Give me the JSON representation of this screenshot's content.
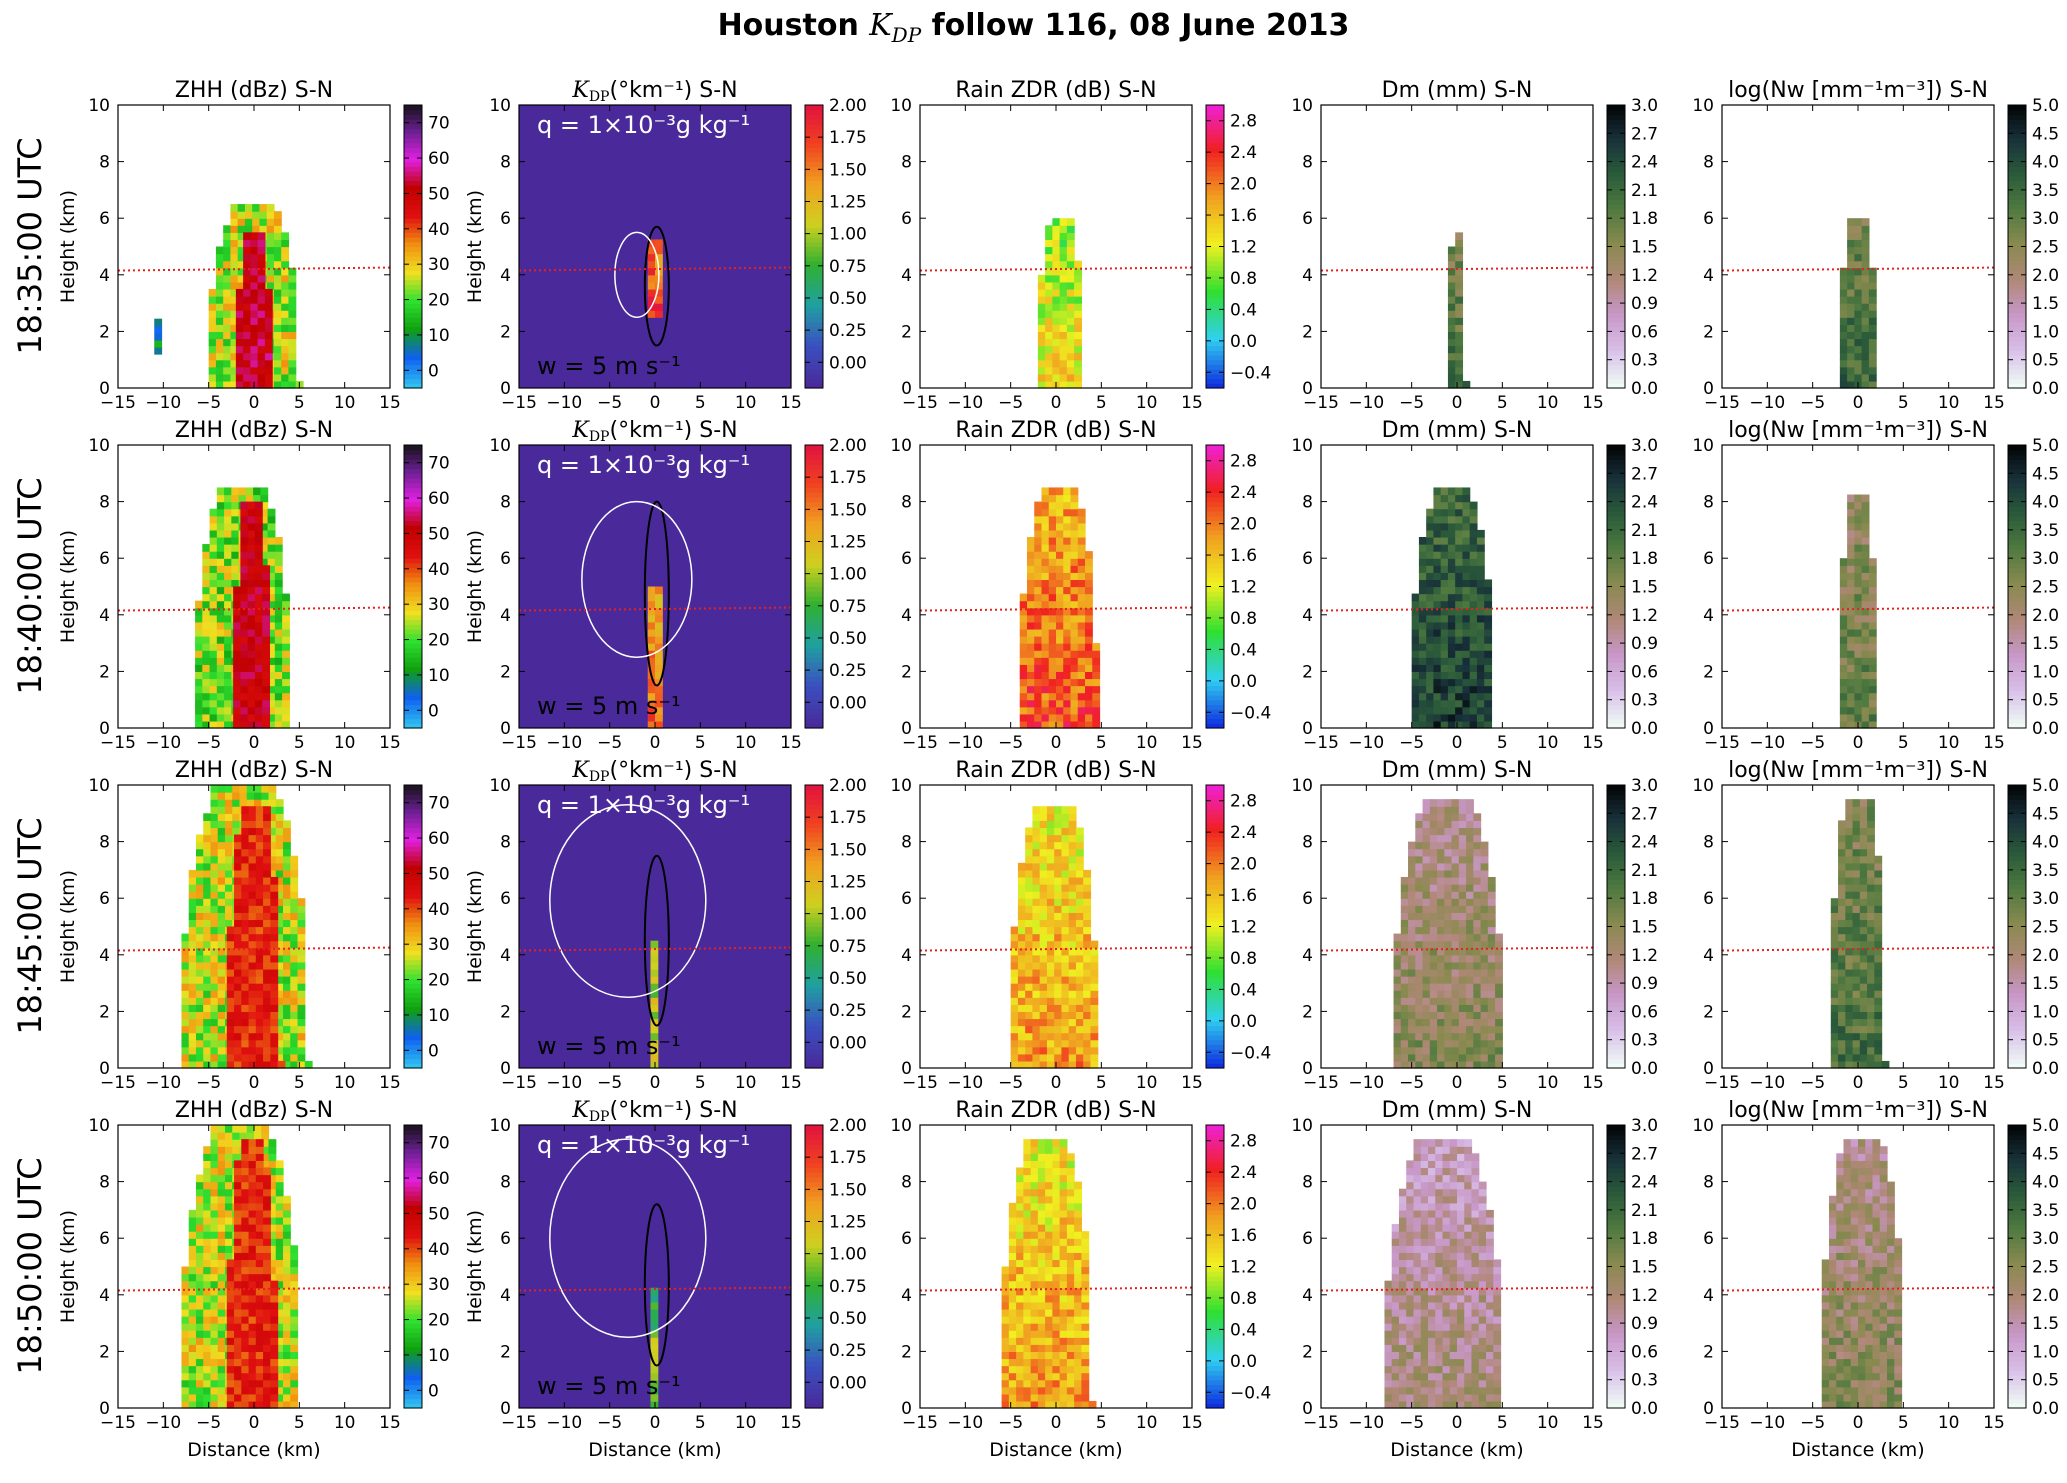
{
  "title": "Houston K_DP follow 116, 08 June 2013",
  "title_parts": {
    "pre": "Houston ",
    "math": "K",
    "math_sub": "DP",
    "post": " follow 116, 08 June 2013"
  },
  "row_labels": [
    "18:35:00 UTC",
    "18:40:00 UTC",
    "18:45:00 UTC",
    "18:50:00 UTC"
  ],
  "colors": {
    "melting_level_line": "#e8201d",
    "background_kdp": "#4a2a9a",
    "white_contour": "#ffffff",
    "black_contour": "#000000"
  },
  "chart_data": [
    {
      "type": "heatmap",
      "column": "ZHH",
      "title": "ZHH (dBz) S-N",
      "xlabel": "Distance (km)",
      "ylabel": "Height (km)",
      "xlim": [
        -15,
        15
      ],
      "ylim": [
        0,
        10
      ],
      "xticks": [
        -15,
        -10,
        -5,
        0,
        5,
        10,
        15
      ],
      "yticks": [
        0,
        2,
        4,
        6,
        8,
        10
      ],
      "colorbar": {
        "min": -5,
        "max": 75,
        "ticks": [
          0,
          10,
          20,
          30,
          40,
          50,
          60,
          70
        ],
        "colormap": [
          "#30c0f0",
          "#1060f0",
          "#10a010",
          "#30e030",
          "#f0e020",
          "#f09010",
          "#e01010",
          "#c00000",
          "#e020e0",
          "#6a2090",
          "#101010"
        ]
      },
      "cells": [
        {
          "kind": "core",
          "x": [
            -2,
            2
          ],
          "y": [
            0,
            5.5
          ],
          "snapshot": 0,
          "value": 52
        },
        {
          "kind": "shell",
          "x": [
            -5,
            5
          ],
          "y": [
            0,
            6.3
          ],
          "snapshot": 0,
          "value": 25
        },
        {
          "kind": "blob",
          "x": [
            -11,
            -10
          ],
          "y": [
            1.2,
            2.3
          ],
          "snapshot": 0,
          "value": 10
        },
        {
          "kind": "core",
          "x": [
            -2.3,
            1.8
          ],
          "y": [
            0,
            8
          ],
          "snapshot": 1,
          "value": 50
        },
        {
          "kind": "shell",
          "x": [
            -6.5,
            4
          ],
          "y": [
            0,
            8.5
          ],
          "snapshot": 1,
          "value": 22
        },
        {
          "kind": "core",
          "x": [
            -3,
            3
          ],
          "y": [
            0,
            9.2
          ],
          "snapshot": 2,
          "value": 42
        },
        {
          "kind": "shell",
          "x": [
            -8,
            6
          ],
          "y": [
            0,
            10
          ],
          "snapshot": 2,
          "value": 25
        },
        {
          "kind": "core",
          "x": [
            -3,
            2.5
          ],
          "y": [
            0,
            9.3
          ],
          "snapshot": 3,
          "value": 42
        },
        {
          "kind": "shell",
          "x": [
            -8,
            5
          ],
          "y": [
            0,
            10
          ],
          "snapshot": 3,
          "value": 25
        }
      ]
    },
    {
      "type": "heatmap",
      "column": "KDP",
      "title": "K_DP (°km⁻¹) S-N",
      "title_parts": {
        "math": "K",
        "sub": "DP",
        "rest": "(°km⁻¹) S-N"
      },
      "annotation_q": "q = 1×10⁻³g kg⁻¹",
      "annotation_w": "w = 5 m s⁻¹",
      "xlabel": "Distance (km)",
      "ylabel": "Height (km)",
      "xlim": [
        -15,
        15
      ],
      "ylim": [
        0,
        10
      ],
      "xticks": [
        -15,
        -10,
        -5,
        0,
        5,
        10,
        15
      ],
      "yticks": [
        0,
        2,
        4,
        6,
        8,
        10
      ],
      "colorbar": {
        "min": -0.2,
        "max": 2.0,
        "ticks": [
          0.0,
          0.25,
          0.5,
          0.75,
          1.0,
          1.25,
          1.5,
          1.75,
          2.0
        ],
        "ticklabels": [
          "0.00",
          "0.25",
          "0.50",
          "0.75",
          "1.00",
          "1.25",
          "1.50",
          "1.75",
          "2.00"
        ],
        "colormap": [
          "#4a2a9a",
          "#3a50c0",
          "#20a0a0",
          "#30b030",
          "#d0d020",
          "#f0a020",
          "#f04020",
          "#e01040"
        ]
      },
      "cells": [
        {
          "kind": "core",
          "x": [
            -0.8,
            0.8
          ],
          "y": [
            2.5,
            5.2
          ],
          "snapshot": 0,
          "value": 1.8
        },
        {
          "kind": "core",
          "x": [
            -0.8,
            0.8
          ],
          "y": [
            0,
            5
          ],
          "snapshot": 1,
          "value": 1.6
        },
        {
          "kind": "core",
          "x": [
            -0.5,
            0.7
          ],
          "y": [
            0,
            4.5
          ],
          "snapshot": 2,
          "value": 1.2
        },
        {
          "kind": "core",
          "x": [
            -0.5,
            0.7
          ],
          "y": [
            0,
            4.2
          ],
          "snapshot": 3,
          "value": 1.0
        }
      ]
    },
    {
      "type": "heatmap",
      "column": "ZDR",
      "title": "Rain ZDR (dB) S-N",
      "xlabel": "Distance (km)",
      "ylabel": "",
      "xlim": [
        -15,
        15
      ],
      "ylim": [
        0,
        10
      ],
      "xticks": [
        -15,
        -10,
        -5,
        0,
        5,
        10,
        15
      ],
      "yticks": [
        0,
        2,
        4,
        6,
        8,
        10
      ],
      "colorbar": {
        "min": -0.6,
        "max": 3.0,
        "ticks": [
          -0.4,
          0.0,
          0.4,
          0.8,
          1.2,
          1.6,
          2.0,
          2.4,
          2.8
        ],
        "ticklabels": [
          "−0.4",
          "0.0",
          "0.4",
          "0.8",
          "1.2",
          "1.6",
          "2.0",
          "2.4",
          "2.8"
        ],
        "colormap": [
          "#1030e0",
          "#30d0f0",
          "#30e030",
          "#f0f020",
          "#f0a020",
          "#f02020",
          "#f020e0"
        ]
      },
      "cells": [
        {
          "kind": "core",
          "x": [
            -2,
            3
          ],
          "y": [
            0,
            5.8
          ],
          "snapshot": 0,
          "value": 1.4
        },
        {
          "kind": "core",
          "x": [
            -4,
            4.5
          ],
          "y": [
            0,
            8.4
          ],
          "snapshot": 1,
          "value": 2.2
        },
        {
          "kind": "core",
          "x": [
            -5,
            4.5
          ],
          "y": [
            0,
            9.2
          ],
          "snapshot": 2,
          "value": 1.8
        },
        {
          "kind": "core",
          "x": [
            -6,
            4
          ],
          "y": [
            0,
            9.3
          ],
          "snapshot": 3,
          "value": 1.8
        }
      ]
    },
    {
      "type": "heatmap",
      "column": "Dm",
      "title": "Dm (mm) S-N",
      "xlabel": "Distance (km)",
      "ylabel": "",
      "xlim": [
        -15,
        15
      ],
      "ylim": [
        0,
        10
      ],
      "xticks": [
        -15,
        -10,
        -5,
        0,
        5,
        10,
        15
      ],
      "yticks": [
        0,
        2,
        4,
        6,
        8,
        10
      ],
      "colorbar": {
        "min": 0.0,
        "max": 3.0,
        "ticks": [
          0.0,
          0.3,
          0.6,
          0.9,
          1.2,
          1.5,
          1.8,
          2.1,
          2.4,
          2.7,
          3.0
        ],
        "ticklabels": [
          "0.0",
          "0.3",
          "0.6",
          "0.9",
          "1.2",
          "1.5",
          "1.8",
          "2.1",
          "2.4",
          "2.7",
          "3.0"
        ],
        "colormap": [
          "#f0fbf5",
          "#d8c0e8",
          "#c898c8",
          "#b08878",
          "#8a8a50",
          "#507a40",
          "#2a5a3a",
          "#18303a",
          "#000000"
        ]
      },
      "cells": [
        {
          "kind": "core",
          "x": [
            -1,
            1
          ],
          "y": [
            0,
            5.5
          ],
          "snapshot": 0,
          "value": 2.0
        },
        {
          "kind": "core",
          "x": [
            -5,
            4
          ],
          "y": [
            0,
            8.3
          ],
          "snapshot": 1,
          "value": 2.5
        },
        {
          "kind": "core",
          "x": [
            -7,
            5
          ],
          "y": [
            0,
            9.3
          ],
          "snapshot": 2,
          "value": 1.5
        },
        {
          "kind": "core",
          "x": [
            -8,
            5
          ],
          "y": [
            0,
            9.3
          ],
          "snapshot": 3,
          "value": 1.2
        }
      ]
    },
    {
      "type": "heatmap",
      "column": "Nw",
      "title": "log(Nw [mm⁻¹m⁻³]) S-N",
      "xlabel": "Distance (km)",
      "ylabel": "",
      "xlim": [
        -15,
        15
      ],
      "ylim": [
        0,
        10
      ],
      "xticks": [
        -15,
        -10,
        -5,
        0,
        5,
        10,
        15
      ],
      "yticks": [
        0,
        2,
        4,
        6,
        8,
        10
      ],
      "colorbar": {
        "min": 0.0,
        "max": 5.0,
        "ticks": [
          0.0,
          0.5,
          1.0,
          1.5,
          2.0,
          2.5,
          3.0,
          3.5,
          4.0,
          4.5,
          5.0
        ],
        "ticklabels": [
          "0.0",
          "0.5",
          "1.0",
          "1.5",
          "2.0",
          "2.5",
          "3.0",
          "3.5",
          "4.0",
          "4.5",
          "5.0"
        ],
        "colormap": [
          "#f0fbf5",
          "#d8c0e8",
          "#c898c8",
          "#b08878",
          "#8a8a50",
          "#507a40",
          "#2a5a3a",
          "#18303a",
          "#000000"
        ]
      },
      "cells": [
        {
          "kind": "core",
          "x": [
            -2,
            2
          ],
          "y": [
            0,
            5.8
          ],
          "snapshot": 0,
          "value": 3.5
        },
        {
          "kind": "core",
          "x": [
            -2,
            2
          ],
          "y": [
            0,
            8.2
          ],
          "snapshot": 1,
          "value": 3.0
        },
        {
          "kind": "core",
          "x": [
            -3,
            3
          ],
          "y": [
            0,
            9.5
          ],
          "snapshot": 2,
          "value": 3.3
        },
        {
          "kind": "core",
          "x": [
            -4,
            5
          ],
          "y": [
            0,
            9.5
          ],
          "snapshot": 3,
          "value": 2.5
        }
      ]
    }
  ],
  "melting_level_km": 4.15
}
